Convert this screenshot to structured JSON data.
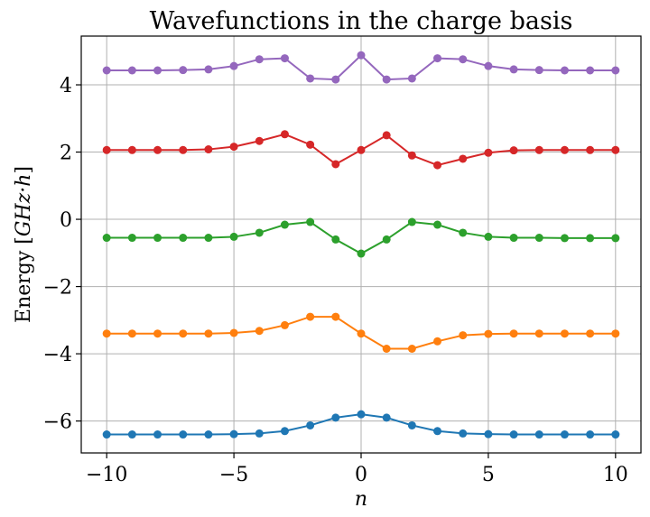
{
  "chart_data": {
    "type": "line",
    "title": "Wavefunctions in the charge basis",
    "xlabel": "n",
    "ylabel": "Energy [GHz·h]",
    "ylabel_parts": {
      "prefix": "Energy [",
      "math": "GHz·h",
      "suffix": "]"
    },
    "xlim": [
      -11,
      11
    ],
    "ylim": [
      -6.95,
      5.45
    ],
    "xticks": [
      -10,
      -5,
      0,
      5,
      10
    ],
    "xtick_labels": [
      "−10",
      "−5",
      "0",
      "5",
      "10"
    ],
    "yticks": [
      -6,
      -4,
      -2,
      0,
      2,
      4
    ],
    "ytick_labels": [
      "−6",
      "−4",
      "−2",
      "0",
      "2",
      "4"
    ],
    "grid": true,
    "x": [
      -10,
      -9,
      -8,
      -7,
      -6,
      -5,
      -4,
      -3,
      -2,
      -1,
      0,
      1,
      2,
      3,
      4,
      5,
      6,
      7,
      8,
      9,
      10
    ],
    "series": [
      {
        "color": "#1f77b4",
        "values": [
          -6.4,
          -6.4,
          -6.4,
          -6.4,
          -6.4,
          -6.39,
          -6.37,
          -6.3,
          -6.13,
          -5.9,
          -5.8,
          -5.9,
          -6.13,
          -6.3,
          -6.37,
          -6.39,
          -6.4,
          -6.4,
          -6.4,
          -6.4,
          -6.4
        ]
      },
      {
        "color": "#ff7f0e",
        "values": [
          -3.4,
          -3.4,
          -3.4,
          -3.4,
          -3.4,
          -3.38,
          -3.32,
          -3.15,
          -2.9,
          -2.9,
          -3.4,
          -3.85,
          -3.85,
          -3.63,
          -3.45,
          -3.41,
          -3.4,
          -3.4,
          -3.4,
          -3.4,
          -3.4
        ]
      },
      {
        "color": "#2ca02c",
        "values": [
          -0.55,
          -0.55,
          -0.55,
          -0.55,
          -0.55,
          -0.52,
          -0.4,
          -0.16,
          -0.08,
          -0.6,
          -1.02,
          -0.6,
          -0.08,
          -0.16,
          -0.4,
          -0.52,
          -0.55,
          -0.55,
          -0.56,
          -0.56,
          -0.56
        ]
      },
      {
        "color": "#d62728",
        "values": [
          2.06,
          2.06,
          2.06,
          2.06,
          2.08,
          2.16,
          2.33,
          2.53,
          2.22,
          1.64,
          2.06,
          2.5,
          1.9,
          1.61,
          1.8,
          1.98,
          2.05,
          2.06,
          2.06,
          2.06,
          2.06
        ]
      },
      {
        "color": "#9467bd",
        "values": [
          4.43,
          4.43,
          4.43,
          4.44,
          4.46,
          4.56,
          4.76,
          4.79,
          4.19,
          4.16,
          4.88,
          4.16,
          4.19,
          4.79,
          4.76,
          4.56,
          4.46,
          4.44,
          4.43,
          4.43,
          4.43
        ]
      }
    ]
  }
}
